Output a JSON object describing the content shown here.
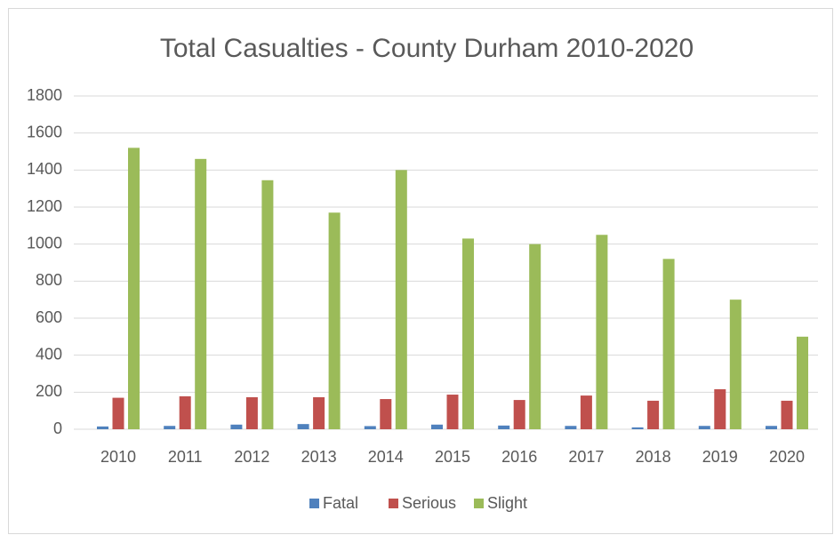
{
  "chart_data": {
    "type": "bar",
    "title": "Total Casualties - County Durham 2010-2020",
    "categories": [
      "2010",
      "2011",
      "2012",
      "2013",
      "2014",
      "2015",
      "2016",
      "2017",
      "2018",
      "2019",
      "2020"
    ],
    "series": [
      {
        "name": "Fatal",
        "color": "#4f81bd",
        "values": [
          15,
          18,
          25,
          28,
          17,
          25,
          20,
          18,
          10,
          18,
          18
        ]
      },
      {
        "name": "Serious",
        "color": "#c0504d",
        "values": [
          170,
          178,
          173,
          173,
          163,
          187,
          158,
          182,
          154,
          216,
          154
        ]
      },
      {
        "name": "Slight",
        "color": "#9bbb59",
        "values": [
          1520,
          1460,
          1345,
          1170,
          1400,
          1030,
          1000,
          1050,
          920,
          700,
          500
        ]
      }
    ],
    "ylim": [
      0,
      1800
    ],
    "yticks": [
      0,
      200,
      400,
      600,
      800,
      1000,
      1200,
      1400,
      1600,
      1800
    ],
    "grid": true,
    "legend": "bottom"
  }
}
